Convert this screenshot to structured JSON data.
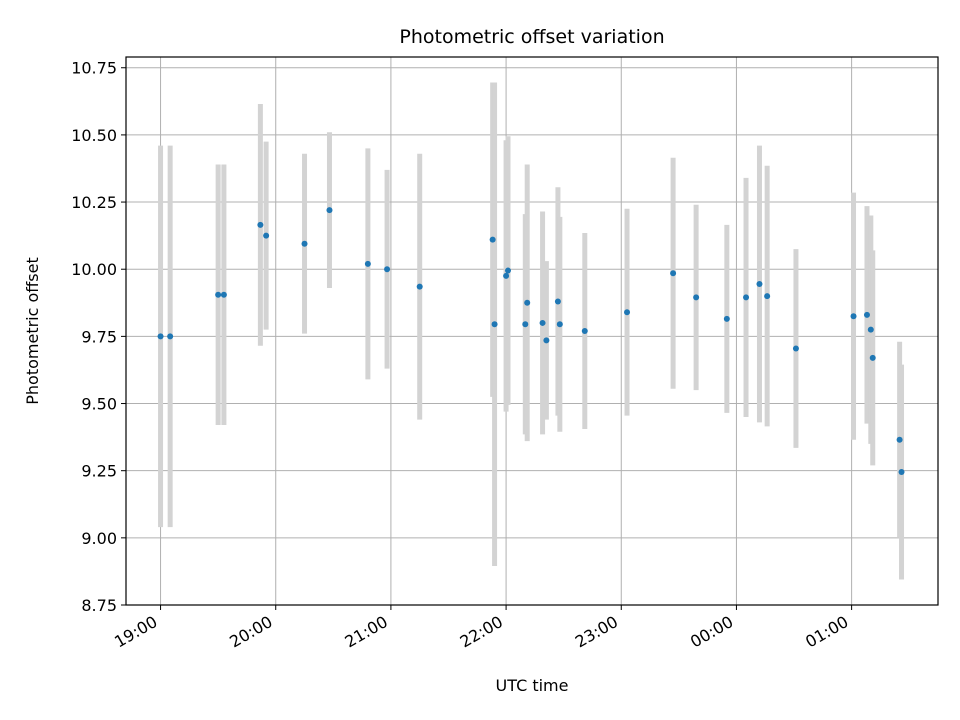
{
  "chart_data": {
    "type": "scatter",
    "title": "Photometric offset variation",
    "xlabel": "UTC time",
    "ylabel": "Photometric offset",
    "x_tick_labels": [
      "19:00",
      "20:00",
      "21:00",
      "22:00",
      "23:00",
      "00:00",
      "01:00"
    ],
    "x_tick_hours": [
      0,
      1,
      2,
      3,
      4,
      5,
      6
    ],
    "x_tick_note_start": "19:00",
    "y_ticks": [
      8.75,
      9.0,
      9.25,
      9.5,
      9.75,
      10.0,
      10.25,
      10.5,
      10.75
    ],
    "y_tick_labels": [
      "8.75",
      "9.00",
      "9.25",
      "9.50",
      "9.75",
      "10.00",
      "10.25",
      "10.50",
      "10.75"
    ],
    "ylim": [
      8.75,
      10.79
    ],
    "xlim_hours": [
      -0.3,
      6.75
    ],
    "grid": true,
    "point_color": "#1f77b4",
    "errorbar_color": "#d3d3d3",
    "points": [
      {
        "t": "19:00",
        "y": 9.75,
        "err": 0.71
      },
      {
        "t": "19:05",
        "y": 9.75,
        "err": 0.71
      },
      {
        "t": "19:30",
        "y": 9.905,
        "err": 0.485
      },
      {
        "t": "19:33",
        "y": 9.905,
        "err": 0.485
      },
      {
        "t": "19:52",
        "y": 10.165,
        "err": 0.45
      },
      {
        "t": "19:55",
        "y": 10.125,
        "err": 0.35
      },
      {
        "t": "20:15",
        "y": 10.095,
        "err": 0.335
      },
      {
        "t": "20:28",
        "y": 10.22,
        "err": 0.29
      },
      {
        "t": "20:48",
        "y": 10.02,
        "err": 0.43
      },
      {
        "t": "20:58",
        "y": 10.0,
        "err": 0.37
      },
      {
        "t": "21:15",
        "y": 9.935,
        "err": 0.495
      },
      {
        "t": "21:53",
        "y": 10.11,
        "err": 0.585
      },
      {
        "t": "21:54",
        "y": 9.795,
        "err": 0.9
      },
      {
        "t": "22:00",
        "y": 9.975,
        "err": 0.505
      },
      {
        "t": "22:01",
        "y": 9.995,
        "err": 0.5
      },
      {
        "t": "22:10",
        "y": 9.795,
        "err": 0.41
      },
      {
        "t": "22:11",
        "y": 9.875,
        "err": 0.515
      },
      {
        "t": "22:19",
        "y": 9.8,
        "err": 0.415
      },
      {
        "t": "22:21",
        "y": 9.735,
        "err": 0.295
      },
      {
        "t": "22:27",
        "y": 9.88,
        "err": 0.425
      },
      {
        "t": "22:28",
        "y": 9.795,
        "err": 0.4
      },
      {
        "t": "22:41",
        "y": 9.77,
        "err": 0.365
      },
      {
        "t": "23:03",
        "y": 9.84,
        "err": 0.385
      },
      {
        "t": "23:27",
        "y": 9.985,
        "err": 0.43
      },
      {
        "t": "23:39",
        "y": 9.895,
        "err": 0.345
      },
      {
        "t": "23:55",
        "y": 9.815,
        "err": 0.35
      },
      {
        "t": "00:05",
        "y": 9.895,
        "err": 0.445
      },
      {
        "t": "00:12",
        "y": 9.945,
        "err": 0.515
      },
      {
        "t": "00:16",
        "y": 9.9,
        "err": 0.485
      },
      {
        "t": "00:31",
        "y": 9.705,
        "err": 0.37
      },
      {
        "t": "01:01",
        "y": 9.825,
        "err": 0.46
      },
      {
        "t": "01:08",
        "y": 9.83,
        "err": 0.405
      },
      {
        "t": "01:10",
        "y": 9.775,
        "err": 0.425
      },
      {
        "t": "01:11",
        "y": 9.67,
        "err": 0.4
      },
      {
        "t": "01:25",
        "y": 9.365,
        "err": 0.365
      },
      {
        "t": "01:26",
        "y": 9.245,
        "err": 0.4
      }
    ]
  }
}
